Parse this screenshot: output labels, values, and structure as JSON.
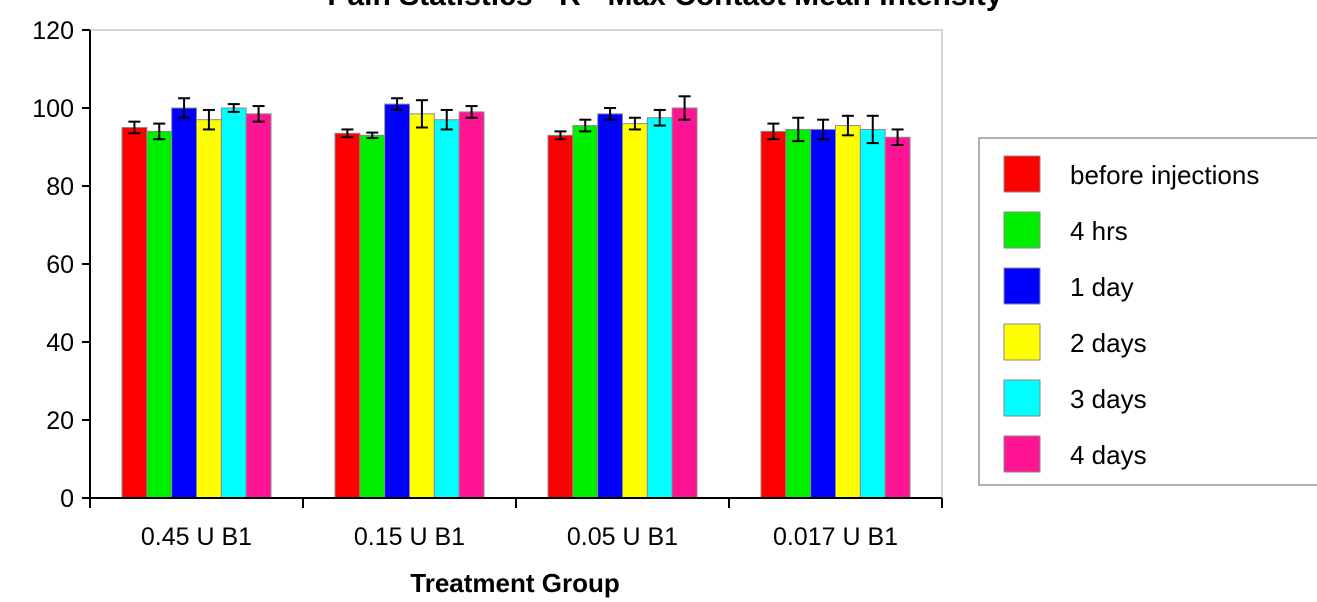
{
  "colors": {
    "before_injections": "#ff0000",
    "4_hrs": "#00ee00",
    "1_day": "#0000ff",
    "2_days": "#ffff00",
    "3_days": "#00ffff",
    "4_days": "#ff1493",
    "plot_border": "#c8c8c8",
    "legend_border": "#999999",
    "axis": "#000000"
  },
  "chart_data": {
    "type": "bar",
    "title": "Pain Statistics - R - Max Contact Mean Intensity",
    "xlabel": "Treatment Group",
    "ylabel": "",
    "ylim": [
      0,
      120
    ],
    "yticks": [
      "0",
      "20",
      "40",
      "60",
      "80",
      "100",
      "120"
    ],
    "categories": [
      "0.45 U B1",
      "0.15 U B1",
      "0.05 U B1",
      "0.017 U B1"
    ],
    "legend_position": "right",
    "grid": false,
    "series": [
      {
        "name": "before injections",
        "color": "#ff0000",
        "values": [
          95,
          93.5,
          93,
          94
        ],
        "errors": [
          1.5,
          1,
          1,
          2
        ]
      },
      {
        "name": "4 hrs",
        "color": "#00ee00",
        "values": [
          94,
          93,
          95.5,
          94.5
        ],
        "errors": [
          2,
          0.7,
          1.5,
          3
        ]
      },
      {
        "name": "1 day",
        "color": "#0000ff",
        "values": [
          100,
          101,
          98.5,
          94.5
        ],
        "errors": [
          2.5,
          1.5,
          1.5,
          2.5
        ]
      },
      {
        "name": "2 days",
        "color": "#ffff00",
        "values": [
          97,
          98.5,
          96,
          95.5
        ],
        "errors": [
          2.5,
          3.5,
          1.5,
          2.5
        ]
      },
      {
        "name": "3 days",
        "color": "#00ffff",
        "values": [
          100,
          97,
          97.5,
          94.5
        ],
        "errors": [
          1,
          2.5,
          2,
          3.5
        ]
      },
      {
        "name": "4 days",
        "color": "#ff1493",
        "values": [
          98.5,
          99,
          100,
          92.5
        ],
        "errors": [
          2,
          1.5,
          3,
          2
        ]
      }
    ]
  }
}
